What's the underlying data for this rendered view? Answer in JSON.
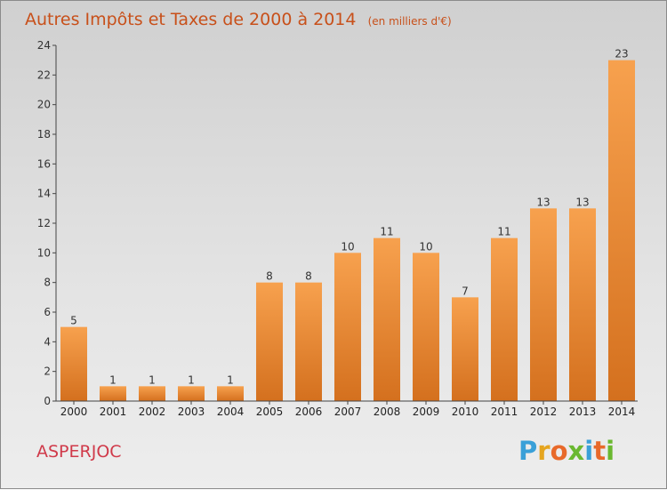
{
  "chart_data": {
    "type": "bar",
    "title": "Autres Impôts et Taxes de 2000 à 2014",
    "subtitle": "(en milliers d'€)",
    "categories": [
      "2000",
      "2001",
      "2002",
      "2003",
      "2004",
      "2005",
      "2006",
      "2007",
      "2008",
      "2009",
      "2010",
      "2011",
      "2012",
      "2013",
      "2014"
    ],
    "values": [
      5,
      1,
      1,
      1,
      1,
      8,
      8,
      10,
      11,
      10,
      7,
      11,
      13,
      13,
      23
    ],
    "xlabel": "",
    "ylabel": "",
    "ylim": [
      0,
      24
    ],
    "yticks": [
      0,
      2,
      4,
      6,
      8,
      10,
      12,
      14,
      16,
      18,
      20,
      22,
      24
    ],
    "grid": false,
    "bar_color_top": "#f7a14e",
    "bar_color_bottom": "#d4701e"
  },
  "commune": "ASPERJOC",
  "logo": {
    "text": "Proxiti",
    "letter_colors": [
      "#3aa0d8",
      "#e5a51f",
      "#e8692a",
      "#6ab830",
      "#3aa0d8",
      "#e8692a",
      "#6ab830"
    ]
  }
}
